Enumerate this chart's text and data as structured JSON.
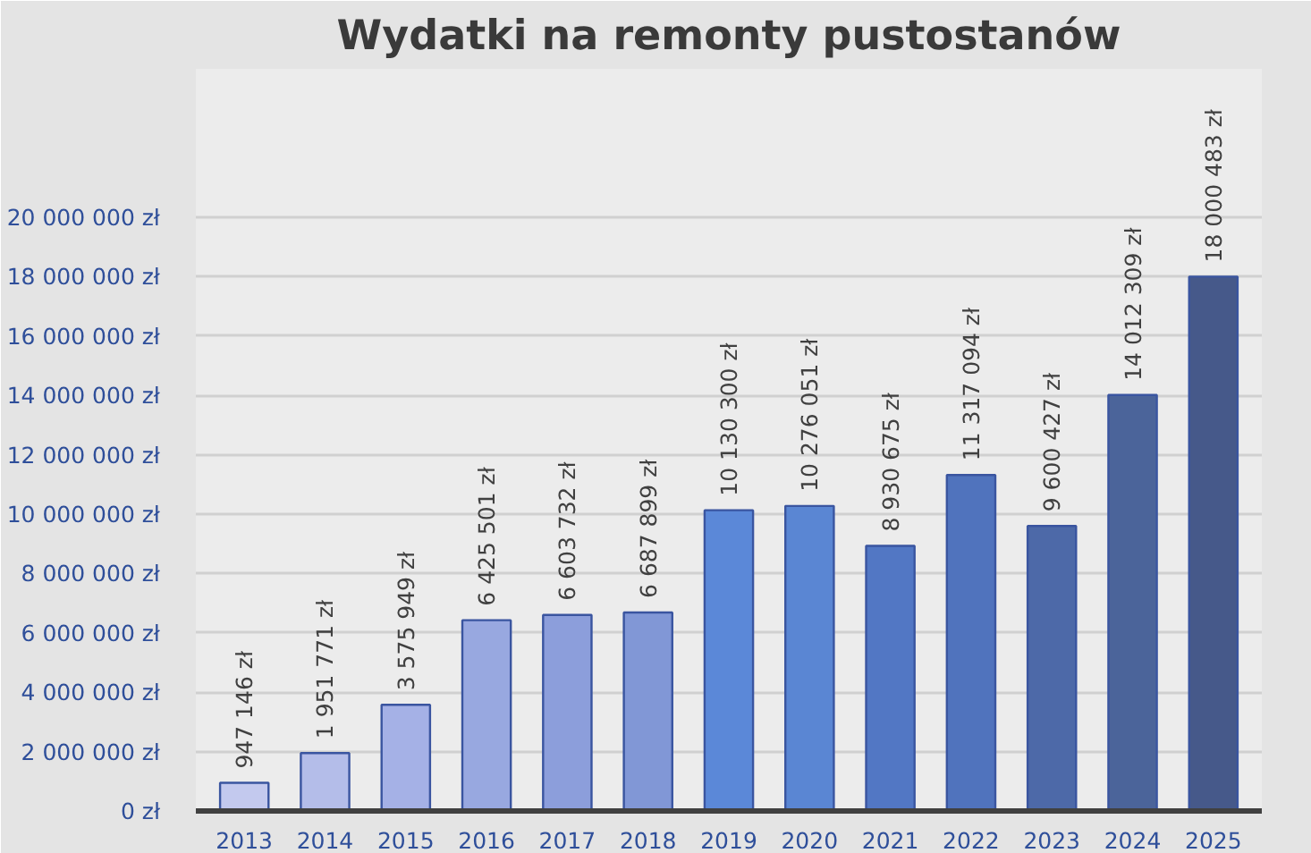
{
  "chart_data": {
    "type": "bar",
    "title": "Wydatki na remonty pustostanów",
    "categories": [
      "2013",
      "2014",
      "2015",
      "2016",
      "2017",
      "2018",
      "2019",
      "2020",
      "2021",
      "2022",
      "2023",
      "2024",
      "2025"
    ],
    "values": [
      947146,
      1951771,
      3575949,
      6425501,
      6603732,
      6687899,
      10130300,
      10276051,
      8930675,
      11317094,
      9600427,
      14012309,
      18000483
    ],
    "value_labels": [
      "947 146 zł",
      "1 951 771 zł",
      "3 575 949 zł",
      "6 425 501 zł",
      "6 603 732 zł",
      "6 687 899 zł",
      "10 130 300 zł",
      "10 276 051 zł",
      "8 930 675 zł",
      "11 317 094 zł",
      "9 600 427 zł",
      "14 012 309 zł",
      "18 000 483 zł"
    ],
    "colors": [
      "#c3c9ee",
      "#b4bde9",
      "#a5b1e6",
      "#98a8e0",
      "#8c9edb",
      "#8197d6",
      "#5b88d8",
      "#5a86d3",
      "#5277c4",
      "#5073bd",
      "#4d69a8",
      "#4b649a",
      "#46598a"
    ],
    "ylim": [
      0,
      25000000
    ],
    "yticks": [
      {
        "value": 0,
        "label": "0 zł"
      },
      {
        "value": 2000000,
        "label": "2 000 000 zł"
      },
      {
        "value": 4000000,
        "label": "4 000 000 zł"
      },
      {
        "value": 6000000,
        "label": "6 000 000 zł"
      },
      {
        "value": 8000000,
        "label": "8 000 000 zł"
      },
      {
        "value": 10000000,
        "label": "10 000 000 zł"
      },
      {
        "value": 12000000,
        "label": "12 000 000 zł"
      },
      {
        "value": 14000000,
        "label": "14 000 000 zł"
      },
      {
        "value": 16000000,
        "label": "16 000 000 zł"
      },
      {
        "value": 18000000,
        "label": "18 000 000 zł"
      },
      {
        "value": 20000000,
        "label": "20 000 000 zł"
      }
    ],
    "grid": "y"
  }
}
